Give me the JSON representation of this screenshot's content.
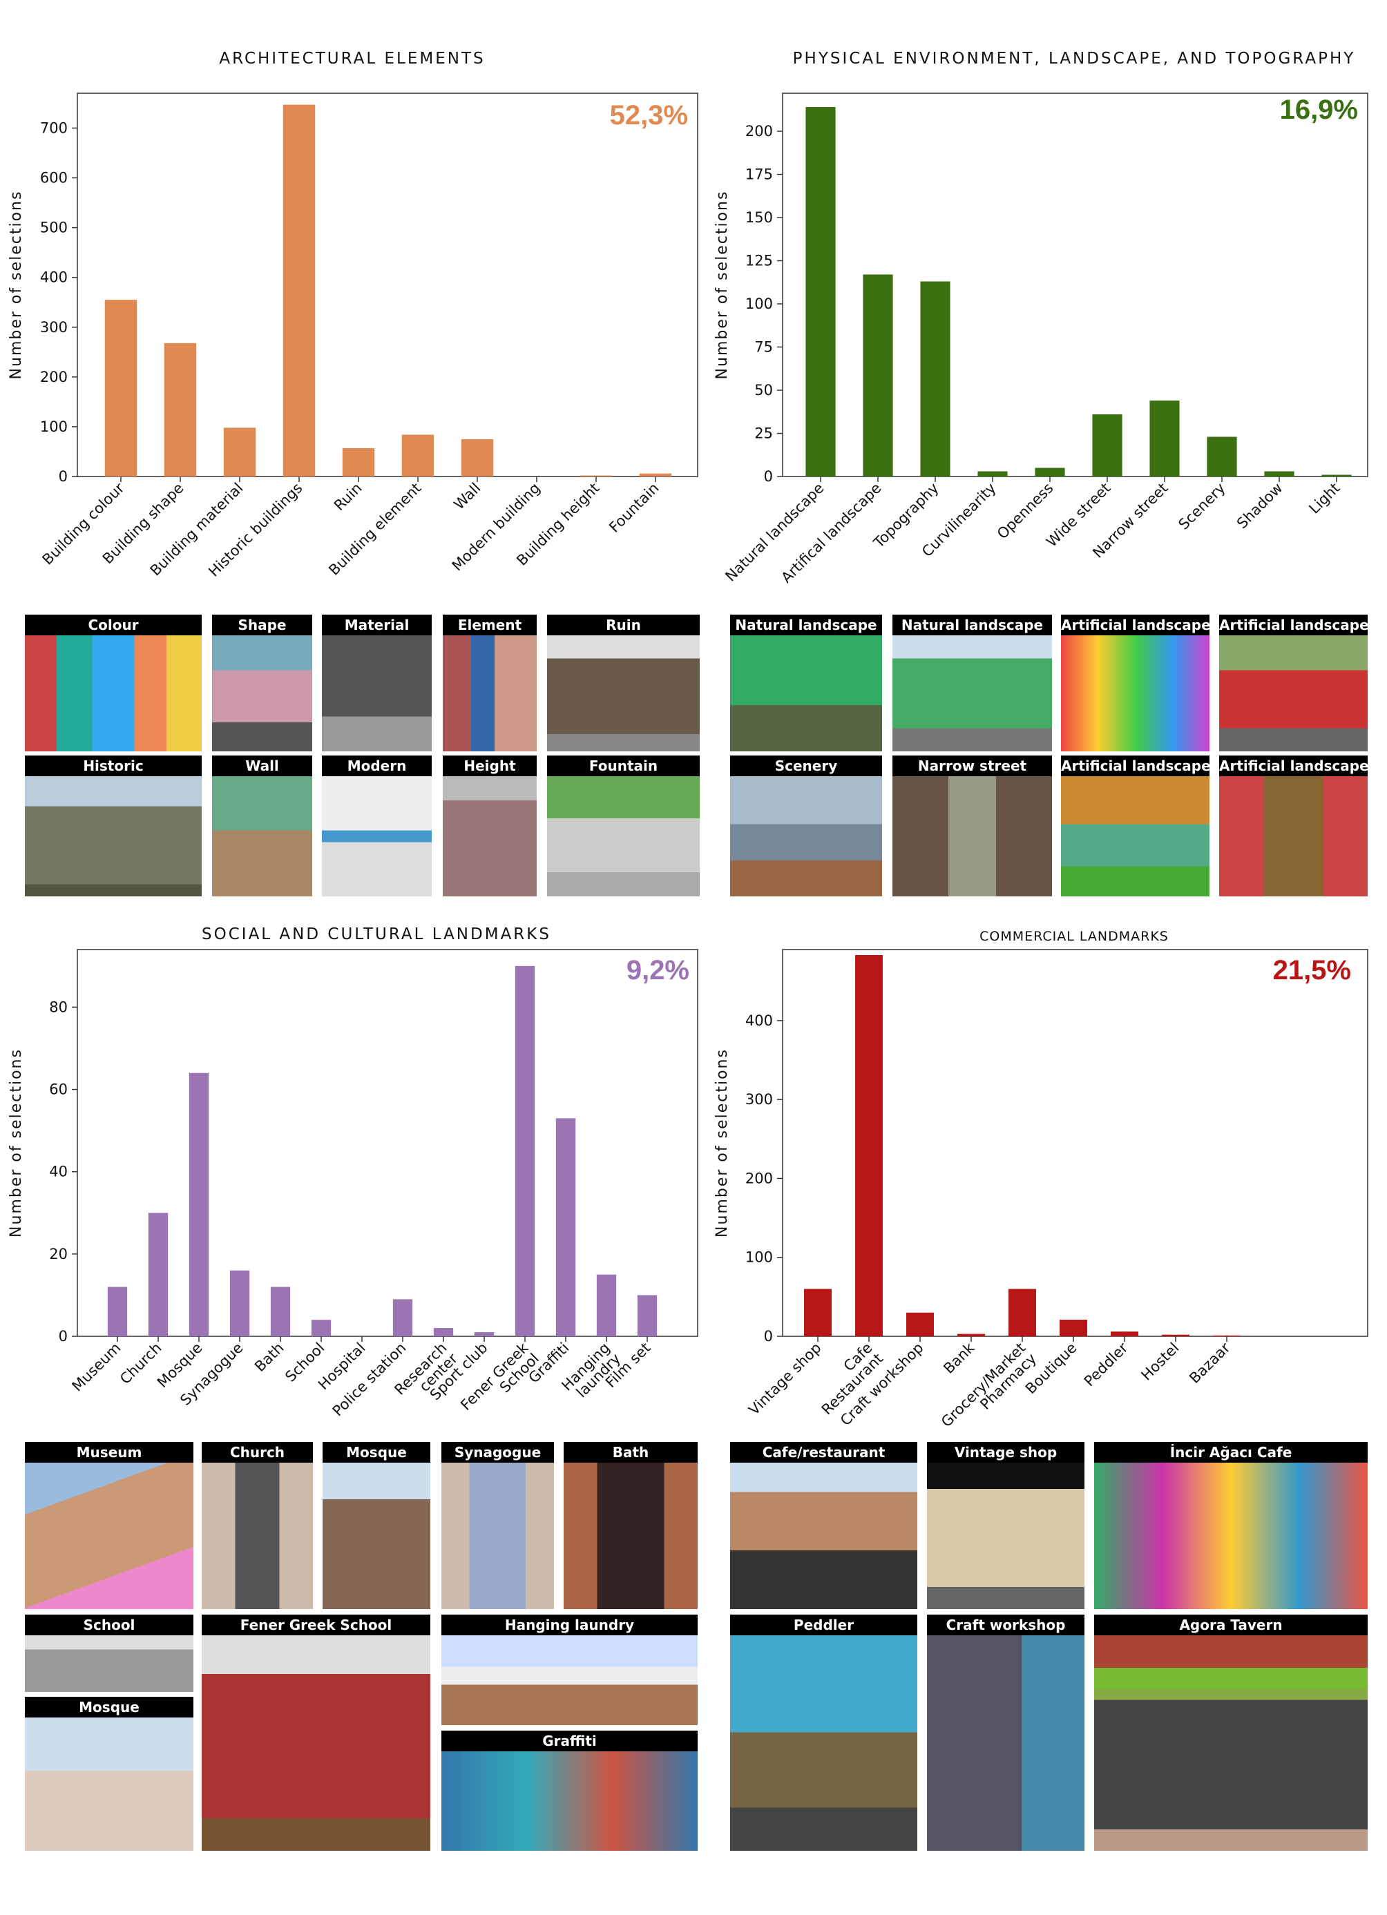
{
  "chart_data": [
    {
      "type": "bar",
      "title": "ARCHITECTURAL ELEMENTS",
      "annotation": "52,3%",
      "color": "#e08a52",
      "ylabel": "Number of selections",
      "xlabel": "",
      "ylim": [
        0,
        770
      ],
      "yticks": [
        0,
        100,
        200,
        300,
        400,
        500,
        600,
        700
      ],
      "categories": [
        "Building colour",
        "Building shape",
        "Building material",
        "Historic buildings",
        "Ruin",
        "Building element",
        "Wall",
        "Modern building",
        "Building height",
        "Fountain"
      ],
      "values": [
        355,
        268,
        98,
        747,
        57,
        84,
        75,
        0,
        2,
        6
      ],
      "grid": false
    },
    {
      "type": "bar",
      "title": "PHYSICAL ENVIRONMENT, LANDSCAPE, AND TOPOGRAPHY",
      "annotation": "16,9%",
      "color": "#3a7010",
      "ylabel": "Number of selections",
      "xlabel": "",
      "ylim": [
        0,
        222
      ],
      "yticks": [
        0,
        25,
        50,
        75,
        100,
        125,
        150,
        175,
        200
      ],
      "categories": [
        "Natural landscape",
        "Artifical landscape",
        "Topography",
        "Curvilinearity",
        "Openness",
        "Wide street",
        "Narrow street",
        "Scenery",
        "Shadow",
        "Light"
      ],
      "values": [
        214,
        117,
        113,
        3,
        5,
        36,
        44,
        23,
        3,
        1
      ],
      "grid": false
    },
    {
      "type": "bar",
      "title": "SOCIAL AND CULTURAL LANDMARKS",
      "annotation": "9,2%",
      "color": "#9b74b4",
      "ylabel": "Number of selections",
      "xlabel": "",
      "ylim": [
        0,
        94
      ],
      "yticks": [
        0,
        20,
        40,
        60,
        80
      ],
      "categories": [
        "Museum",
        "Church",
        "Mosque",
        "Synagogue",
        "Bath",
        "School",
        "Hospital",
        "Police station",
        "Research center",
        "Sport club",
        "Fener Greek School",
        "Graffiti",
        "Hanging laundry",
        "Film set"
      ],
      "values": [
        12,
        30,
        64,
        16,
        12,
        4,
        0,
        9,
        2,
        1,
        90,
        53,
        15,
        10
      ],
      "grid": false
    },
    {
      "type": "bar",
      "title": "COMMERCIAL LANDMARKS",
      "annotation": "21,5%",
      "color": "#b81616",
      "ylabel": "Number of selections",
      "xlabel": "",
      "ylim": [
        0,
        490
      ],
      "yticks": [
        0,
        100,
        200,
        300,
        400
      ],
      "categories": [
        "Vintage shop",
        "Cafe Restaurant",
        "Craft workshop",
        "Bank",
        "Grocery/Market Pharmacy",
        "Boutique",
        "Peddler",
        "Hostel",
        "Bazaar"
      ],
      "values": [
        60,
        483,
        30,
        3,
        60,
        21,
        6,
        2,
        1
      ],
      "grid": false
    }
  ],
  "photos": {
    "architectural": [
      "Colour",
      "Shape",
      "Material",
      "Element",
      "Ruin",
      "Historic",
      "Wall",
      "Modern",
      "Height",
      "Fountain"
    ],
    "physical": [
      "Natural landscape",
      "Natural landscape",
      "Artificial landscape",
      "Artificial landscape",
      "Scenery",
      "Narrow street",
      "Artificial landscape",
      "Artificial landscape"
    ],
    "social": [
      "Museum",
      "Church",
      "Mosque",
      "Synagogue",
      "Bath",
      "School",
      "Fener Greek School",
      "Hanging laundry",
      "Mosque",
      "Graffiti"
    ],
    "commercial": [
      "Cafe/restaurant",
      "Vintage shop",
      "İncir Ağacı Cafe",
      "Peddler",
      "Craft workshop",
      "Agora Tavern"
    ]
  }
}
